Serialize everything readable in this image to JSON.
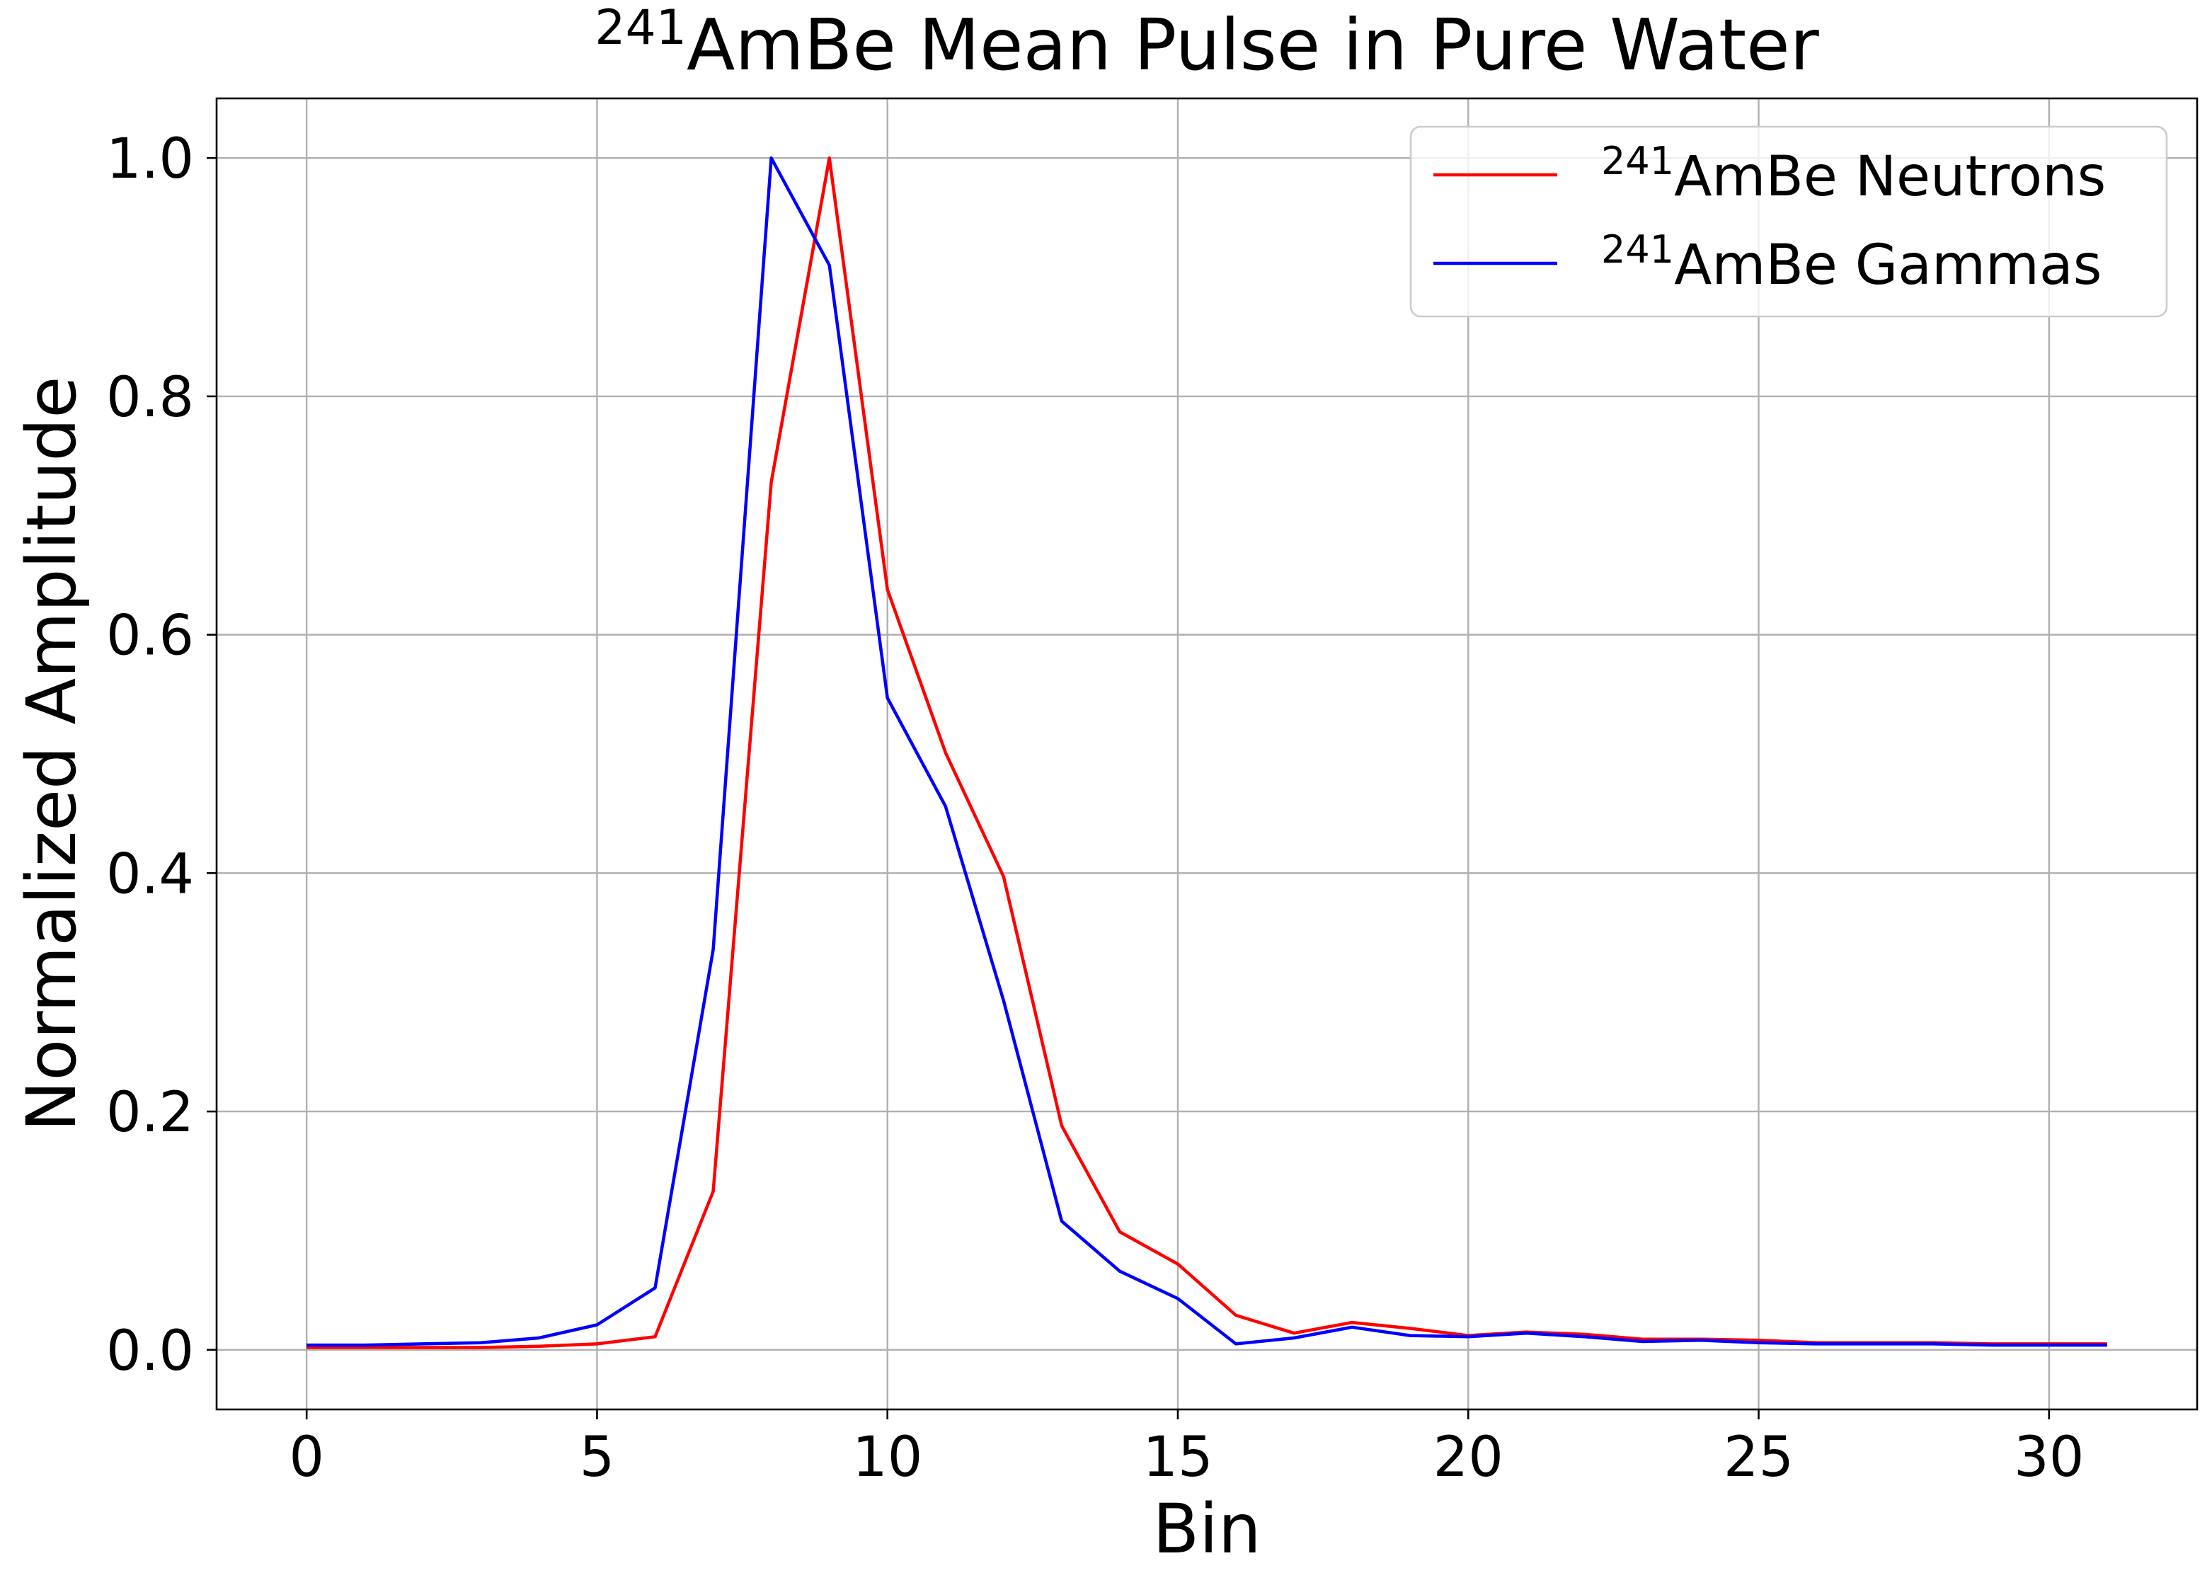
{
  "chart_data": {
    "type": "line",
    "title_sup": "241",
    "title_main": "AmBe Mean Pulse in Pure Water",
    "xlabel": "Bin",
    "ylabel": "Normalized Amplitude",
    "xlim": [
      -1.55,
      32.55
    ],
    "ylim": [
      -0.05,
      1.05
    ],
    "xticks": [
      0,
      5,
      10,
      15,
      20,
      25,
      30
    ],
    "xtick_labels": [
      "0",
      "5",
      "10",
      "15",
      "20",
      "25",
      "30"
    ],
    "yticks": [
      0.0,
      0.2,
      0.4,
      0.6,
      0.8,
      1.0
    ],
    "ytick_labels": [
      "0.0",
      "0.2",
      "0.4",
      "0.6",
      "0.8",
      "1.0"
    ],
    "grid": true,
    "legend_position": "top-right",
    "x": [
      0,
      1,
      2,
      3,
      4,
      5,
      6,
      7,
      8,
      9,
      10,
      11,
      12,
      13,
      14,
      15,
      16,
      17,
      18,
      19,
      20,
      21,
      22,
      23,
      24,
      25,
      26,
      27,
      28,
      29,
      30,
      31
    ],
    "series": [
      {
        "name_sup": "241",
        "name_main": "AmBe Neutrons",
        "color": "#ff0000",
        "values": [
          0.002,
          0.002,
          0.002,
          0.002,
          0.003,
          0.005,
          0.011,
          0.133,
          0.728,
          1.0,
          0.638,
          0.501,
          0.397,
          0.188,
          0.099,
          0.072,
          0.029,
          0.014,
          0.023,
          0.018,
          0.012,
          0.015,
          0.013,
          0.009,
          0.009,
          0.008,
          0.006,
          0.006,
          0.006,
          0.005,
          0.005,
          0.005
        ]
      },
      {
        "name_sup": "241",
        "name_main": "AmBe Gammas",
        "color": "#0000ff",
        "values": [
          0.004,
          0.004,
          0.005,
          0.006,
          0.01,
          0.021,
          0.052,
          0.336,
          1.0,
          0.91,
          0.547,
          0.456,
          0.293,
          0.108,
          0.066,
          0.043,
          0.005,
          0.01,
          0.019,
          0.012,
          0.011,
          0.014,
          0.011,
          0.007,
          0.008,
          0.006,
          0.005,
          0.005,
          0.005,
          0.004,
          0.004,
          0.004
        ]
      }
    ]
  }
}
